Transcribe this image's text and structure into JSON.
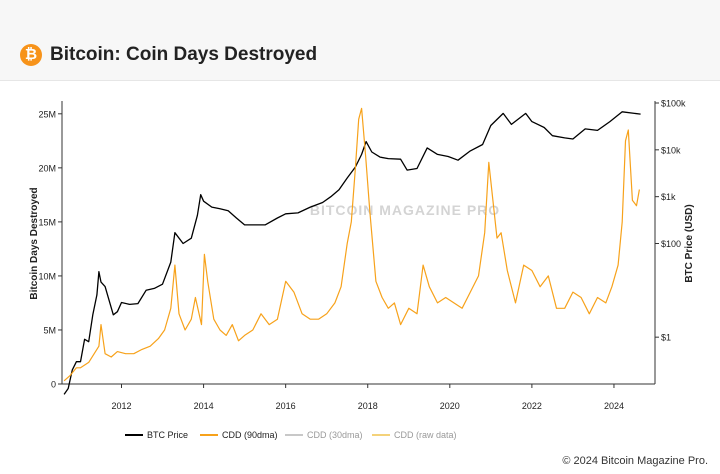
{
  "header": {
    "logo_glyph": "₿",
    "title": "Bitcoin: Coin Days Destroyed"
  },
  "chart_data": {
    "type": "line",
    "title": "Bitcoin: Coin Days Destroyed",
    "ylabel_left": "Bitcoin Days Destroyed",
    "ylabel_right": "BTC Price (USD)",
    "left_axis": {
      "ticks": [
        0,
        5000000,
        10000000,
        15000000,
        20000000,
        25000000
      ],
      "tick_labels": [
        "0",
        "5M",
        "10M",
        "15M",
        "20M",
        "25M"
      ],
      "ylim": [
        0,
        26000000
      ]
    },
    "right_axis": {
      "scale": "log",
      "ticks": [
        1,
        100,
        1000,
        10000,
        100000
      ],
      "tick_labels": [
        "$1",
        "$100",
        "$1k",
        "$10k",
        "$100k"
      ],
      "ylim": [
        0.1,
        100000
      ]
    },
    "x_axis": {
      "ticks": [
        2012,
        2014,
        2016,
        2018,
        2020,
        2022,
        2024
      ],
      "tick_labels": [
        "2012",
        "2014",
        "2016",
        "2018",
        "2020",
        "2022",
        "2024"
      ],
      "xlim": [
        2010.55,
        2025.0
      ]
    },
    "grid": false,
    "legend_placement": "bottom",
    "watermark": "BITCOIN MAGAZINE PRO",
    "series": [
      {
        "name": "BTC Price",
        "axis": "right",
        "color": "#000000",
        "x": [
          2010.6,
          2010.7,
          2010.8,
          2010.9,
          2011.0,
          2011.1,
          2011.2,
          2011.3,
          2011.4,
          2011.45,
          2011.5,
          2011.6,
          2011.7,
          2011.8,
          2011.9,
          2012.0,
          2012.2,
          2012.4,
          2012.6,
          2012.8,
          2013.0,
          2013.2,
          2013.3,
          2013.5,
          2013.7,
          2013.85,
          2013.93,
          2014.0,
          2014.2,
          2014.4,
          2014.6,
          2014.8,
          2015.0,
          2015.2,
          2015.5,
          2015.8,
          2016.0,
          2016.3,
          2016.6,
          2016.9,
          2017.1,
          2017.3,
          2017.5,
          2017.7,
          2017.85,
          2017.96,
          2018.1,
          2018.3,
          2018.5,
          2018.8,
          2018.96,
          2019.2,
          2019.45,
          2019.7,
          2019.96,
          2020.2,
          2020.5,
          2020.8,
          2021.0,
          2021.3,
          2021.5,
          2021.85,
          2022.0,
          2022.3,
          2022.5,
          2022.8,
          2023.0,
          2023.3,
          2023.6,
          2023.9,
          2024.2,
          2024.5,
          2024.65
        ],
        "y": [
          0.06,
          0.08,
          0.2,
          0.3,
          0.3,
          0.9,
          0.8,
          3.0,
          8.0,
          25.0,
          15.0,
          12.0,
          6.0,
          3.0,
          3.5,
          5.5,
          5.0,
          5.2,
          10.0,
          11.0,
          13.5,
          40.0,
          170.0,
          100.0,
          130.0,
          400.0,
          1100.0,
          800.0,
          600.0,
          550.0,
          500.0,
          350.0,
          250.0,
          250.0,
          250.0,
          350.0,
          430.0,
          450.0,
          600.0,
          750.0,
          1000.0,
          1400.0,
          2500.0,
          4300.0,
          8000.0,
          15000.0,
          9000.0,
          7000.0,
          6500.0,
          6300.0,
          3700.0,
          4000.0,
          11000.0,
          8000.0,
          7200.0,
          6000.0,
          9500.0,
          13000.0,
          33000.0,
          60000.0,
          35000.0,
          60000.0,
          40000.0,
          30000.0,
          20000.0,
          18000.0,
          17000.0,
          28000.0,
          26000.0,
          40000.0,
          65000.0,
          60000.0,
          58000.0
        ]
      },
      {
        "name": "CDD (90dma)",
        "axis": "left",
        "color": "#f7a21b",
        "x": [
          2010.6,
          2010.75,
          2010.9,
          2011.0,
          2011.2,
          2011.45,
          2011.5,
          2011.6,
          2011.75,
          2011.9,
          2012.1,
          2012.3,
          2012.5,
          2012.7,
          2012.9,
          2013.05,
          2013.2,
          2013.3,
          2013.4,
          2013.55,
          2013.7,
          2013.8,
          2013.95,
          2014.02,
          2014.1,
          2014.25,
          2014.4,
          2014.55,
          2014.7,
          2014.85,
          2015.0,
          2015.2,
          2015.4,
          2015.6,
          2015.8,
          2016.0,
          2016.2,
          2016.4,
          2016.6,
          2016.8,
          2017.0,
          2017.2,
          2017.35,
          2017.5,
          2017.6,
          2017.7,
          2017.78,
          2017.85,
          2017.95,
          2018.05,
          2018.2,
          2018.35,
          2018.5,
          2018.65,
          2018.8,
          2019.0,
          2019.2,
          2019.35,
          2019.5,
          2019.7,
          2019.9,
          2020.1,
          2020.3,
          2020.5,
          2020.7,
          2020.85,
          2020.95,
          2021.05,
          2021.15,
          2021.25,
          2021.4,
          2021.6,
          2021.8,
          2022.0,
          2022.2,
          2022.4,
          2022.6,
          2022.8,
          2023.0,
          2023.2,
          2023.4,
          2023.6,
          2023.8,
          2023.95,
          2024.1,
          2024.2,
          2024.28,
          2024.35,
          2024.45,
          2024.55,
          2024.62
        ],
        "y": [
          300000,
          800000,
          1500000,
          1500000,
          2000000,
          3500000,
          5500000,
          2800000,
          2500000,
          3000000,
          2800000,
          2800000,
          3200000,
          3500000,
          4200000,
          5000000,
          7000000,
          11000000,
          6500000,
          5000000,
          6000000,
          8000000,
          5500000,
          12000000,
          9500000,
          6000000,
          5000000,
          4500000,
          5500000,
          4000000,
          4500000,
          5000000,
          6500000,
          5500000,
          6000000,
          9500000,
          8500000,
          6500000,
          6000000,
          6000000,
          6500000,
          7500000,
          9000000,
          13000000,
          15000000,
          20000000,
          24500000,
          25500000,
          21000000,
          16000000,
          9500000,
          8000000,
          7000000,
          7500000,
          5500000,
          7000000,
          6500000,
          11000000,
          9000000,
          7500000,
          8000000,
          7500000,
          7000000,
          8500000,
          10000000,
          14000000,
          20500000,
          17000000,
          13500000,
          14000000,
          10500000,
          7500000,
          11000000,
          10500000,
          9000000,
          10000000,
          7000000,
          7000000,
          8500000,
          8000000,
          6500000,
          8000000,
          7500000,
          9000000,
          11000000,
          15000000,
          22500000,
          23500000,
          17000000,
          16500000,
          18000000
        ]
      },
      {
        "name": "CDD (30dma)",
        "axis": "left",
        "color": "#c8c8c8",
        "visible": false,
        "x": [],
        "y": []
      },
      {
        "name": "CDD (raw data)",
        "axis": "left",
        "color": "#f4d27a",
        "visible": false,
        "x": [],
        "y": []
      }
    ]
  },
  "legend": {
    "items": [
      {
        "name": "BTC Price",
        "color": "#000000",
        "faded": false
      },
      {
        "name": "CDD (90dma)",
        "color": "#f7a21b",
        "faded": false
      },
      {
        "name": "CDD (30dma)",
        "color": "#c8c8c8",
        "faded": true
      },
      {
        "name": "CDD (raw data)",
        "color": "#f4d27a",
        "faded": true
      }
    ]
  },
  "footer": {
    "copyright": "© 2024 Bitcoin Magazine Pro."
  }
}
